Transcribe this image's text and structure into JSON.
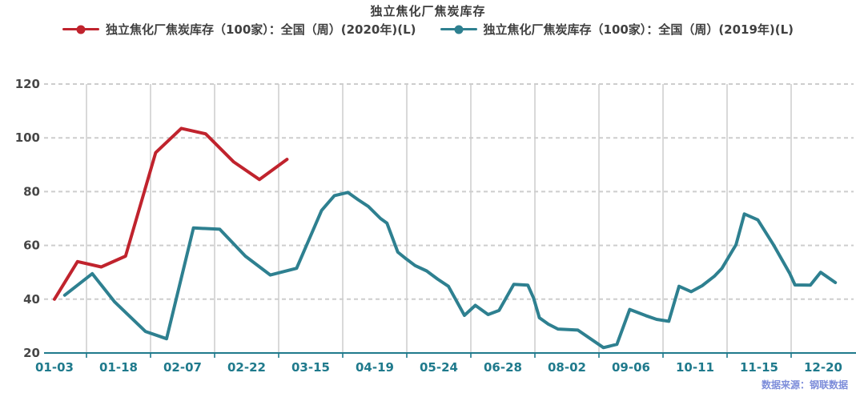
{
  "chart_data": {
    "type": "line",
    "title": "独立焦化厂焦炭库存",
    "legend_position": "top",
    "grid": true,
    "x_tick_labels": [
      "01-03",
      "01-18",
      "02-07",
      "02-22",
      "03-15",
      "04-19",
      "05-24",
      "06-28",
      "08-02",
      "09-06",
      "10-11",
      "11-15",
      "12-20"
    ],
    "y_ticks": [
      20,
      40,
      60,
      80,
      100,
      120
    ],
    "ylim": [
      20,
      120
    ],
    "x_scale_note": "point x values are in label-index units: 0 = 01-03 position, 12 = 12-20 position",
    "axis_color": "#1f7a8c",
    "y_label_color": "#474747",
    "source_color": "#6f81d6",
    "series": [
      {
        "year": "2020",
        "name": "独立焦化厂焦炭库存（100家）：全国（周）(2020年)(L)",
        "color": "#c0232d",
        "points": [
          [
            0,
            40
          ],
          [
            0.36,
            54
          ],
          [
            0.73,
            52
          ],
          [
            1.11,
            56
          ],
          [
            1.58,
            94.5
          ],
          [
            1.98,
            103.5
          ],
          [
            2.36,
            101.5
          ],
          [
            2.8,
            91
          ],
          [
            3.2,
            84.5
          ],
          [
            3.63,
            92
          ]
        ]
      },
      {
        "year": "2019",
        "name": "独立焦化厂焦炭库存（100家）：全国（周）(2019年)(L)",
        "color": "#2e8090",
        "points": [
          [
            0.16,
            41.5
          ],
          [
            0.59,
            49.5
          ],
          [
            0.94,
            39
          ],
          [
            1.42,
            28
          ],
          [
            1.75,
            25.3
          ],
          [
            2.17,
            66.5
          ],
          [
            2.58,
            66
          ],
          [
            2.98,
            56
          ],
          [
            3.37,
            49
          ],
          [
            3.78,
            51.5
          ],
          [
            4.17,
            73
          ],
          [
            4.37,
            78.5
          ],
          [
            4.58,
            79.7
          ],
          [
            4.74,
            77
          ],
          [
            4.9,
            74.5
          ],
          [
            5.09,
            70
          ],
          [
            5.19,
            68.3
          ],
          [
            5.36,
            57.5
          ],
          [
            5.49,
            55
          ],
          [
            5.63,
            52.5
          ],
          [
            5.81,
            50.5
          ],
          [
            5.98,
            47.5
          ],
          [
            6.15,
            44.8
          ],
          [
            6.4,
            34
          ],
          [
            6.57,
            37.7
          ],
          [
            6.77,
            34.3
          ],
          [
            6.94,
            35.8
          ],
          [
            7.17,
            45.5
          ],
          [
            7.39,
            45.2
          ],
          [
            7.48,
            40.4
          ],
          [
            7.57,
            33.1
          ],
          [
            7.71,
            30.7
          ],
          [
            7.86,
            28.9
          ],
          [
            8.17,
            28.5
          ],
          [
            8.57,
            22
          ],
          [
            8.78,
            23.2
          ],
          [
            8.98,
            36.2
          ],
          [
            9.23,
            33.9
          ],
          [
            9.4,
            32.5
          ],
          [
            9.59,
            31.8
          ],
          [
            9.75,
            44.8
          ],
          [
            9.94,
            42.8
          ],
          [
            10.11,
            45
          ],
          [
            10.3,
            48.5
          ],
          [
            10.42,
            51.5
          ],
          [
            10.64,
            60.3
          ],
          [
            10.77,
            71.7
          ],
          [
            10.98,
            69.5
          ],
          [
            11.23,
            60
          ],
          [
            11.48,
            49.5
          ],
          [
            11.56,
            45.3
          ],
          [
            11.8,
            45.2
          ],
          [
            11.96,
            50
          ],
          [
            12.19,
            46.2
          ]
        ]
      }
    ],
    "source_note": "数据来源：钢联数据"
  }
}
